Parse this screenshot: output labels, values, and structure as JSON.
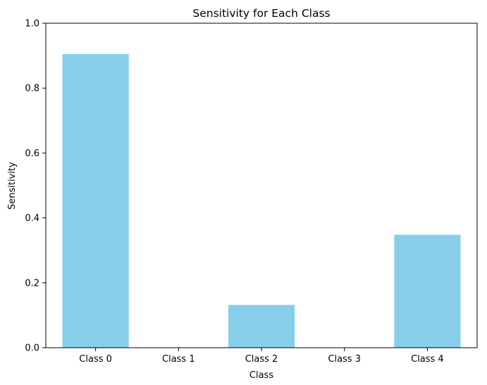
{
  "chart_data": {
    "type": "bar",
    "title": "Sensitivity for Each Class",
    "xlabel": "Class",
    "ylabel": "Sensitivity",
    "categories": [
      "Class 0",
      "Class 1",
      "Class 2",
      "Class 3",
      "Class 4"
    ],
    "values": [
      0.905,
      0.0,
      0.132,
      0.0,
      0.348
    ],
    "ylim": [
      0,
      1
    ],
    "yticks": [
      "0.0",
      "0.2",
      "0.4",
      "0.6",
      "0.8",
      "1.0"
    ],
    "bar_color": "#87ceeb",
    "grid": false,
    "legend": "none"
  }
}
